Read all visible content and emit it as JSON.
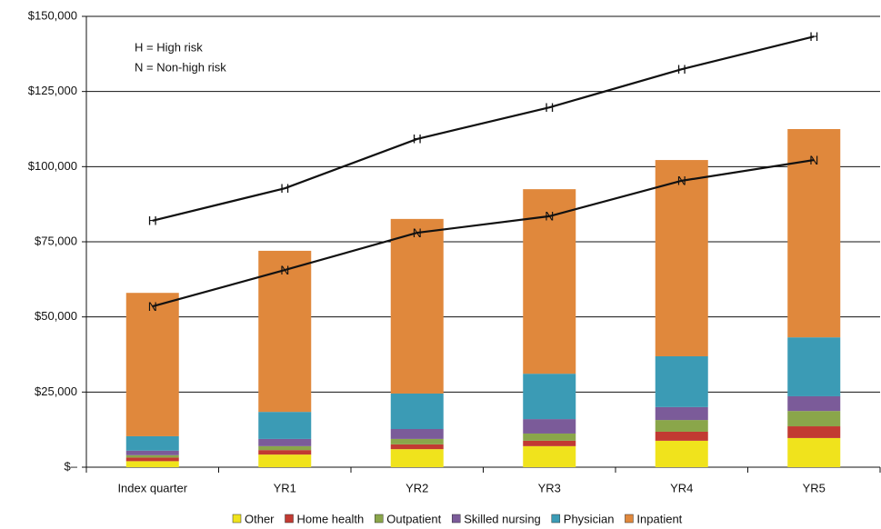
{
  "chart_data": {
    "type": "bar",
    "stacked": true,
    "categories": [
      "Index quarter",
      "YR1",
      "YR2",
      "YR3",
      "YR4",
      "YR5"
    ],
    "series": [
      {
        "name": "Other",
        "color": "#f0e31c",
        "values": [
          2000,
          4200,
          6000,
          7000,
          8800,
          9700
        ]
      },
      {
        "name": "Home health",
        "color": "#c23a32",
        "values": [
          1200,
          1500,
          1600,
          1800,
          3000,
          3900
        ]
      },
      {
        "name": "Outpatient",
        "color": "#8aa64a",
        "values": [
          800,
          1300,
          1800,
          2400,
          3900,
          5100
        ]
      },
      {
        "name": "Skilled nursing",
        "color": "#7b5b99",
        "values": [
          1500,
          2400,
          3300,
          4800,
          4300,
          4900
        ]
      },
      {
        "name": "Physician",
        "color": "#3b9bb5",
        "values": [
          4800,
          9000,
          11800,
          15100,
          16900,
          19600
        ]
      },
      {
        "name": "Inpatient",
        "color": "#e0883c",
        "values": [
          47700,
          53600,
          58100,
          61400,
          65300,
          69300
        ]
      }
    ],
    "line_series": [
      {
        "name": "H",
        "color": "#111111",
        "values": [
          82000,
          92800,
          109200,
          119700,
          132400,
          143300
        ]
      },
      {
        "name": "N",
        "color": "#111111",
        "values": [
          53500,
          65600,
          78000,
          83500,
          95300,
          102200
        ]
      }
    ],
    "annotations": [
      "H = High risk",
      "N = Non-high risk"
    ],
    "ylim": [
      0,
      150000
    ],
    "yticks": [
      {
        "value": 0,
        "label": "$–"
      },
      {
        "value": 25000,
        "label": "$25,000"
      },
      {
        "value": 50000,
        "label": "$50,000"
      },
      {
        "value": 75000,
        "label": "$75,000"
      },
      {
        "value": 100000,
        "label": "$100,000"
      },
      {
        "value": 125000,
        "label": "$125,000"
      },
      {
        "value": 150000,
        "label": "$150,000"
      }
    ],
    "grid": true
  }
}
